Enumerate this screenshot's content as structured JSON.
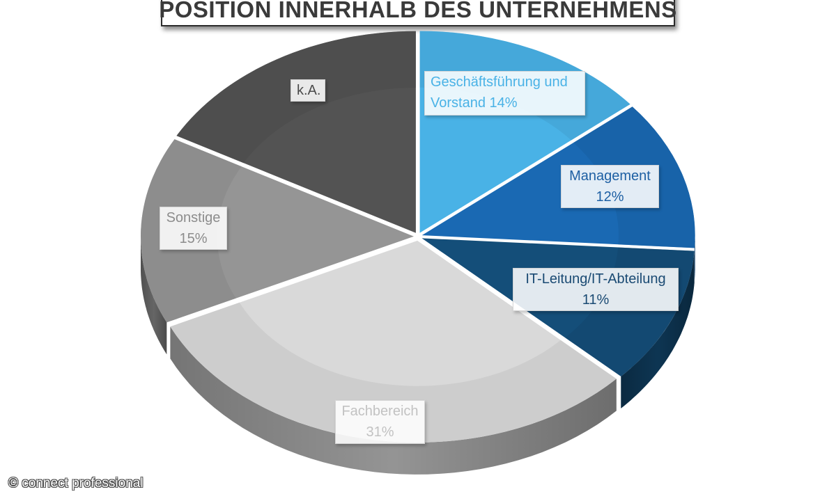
{
  "chart_data": {
    "type": "pie",
    "style": "3d-exploded",
    "title": "POSITION INNERHALB DES UNTERNEHMENS",
    "slices": [
      {
        "label": "Geschäftsführung und Vorstand",
        "value": 14,
        "value_label": "14%",
        "color": "#49b2e6"
      },
      {
        "label": "Management",
        "value": 12,
        "value_label": "12%",
        "color": "#1a69b3"
      },
      {
        "label": "IT-Leitung/IT-Abteilung",
        "value": 11,
        "value_label": "11%",
        "color": "#144e79"
      },
      {
        "label": "Fachbereich",
        "value": 31,
        "value_label": "31%",
        "color": "#d9d9d9"
      },
      {
        "label": "Sonstige",
        "value": 15,
        "value_label": "15%",
        "color": "#959595"
      },
      {
        "label": "k.A.",
        "value": 17,
        "value_label": "",
        "color": "#535353"
      }
    ]
  },
  "labels": {
    "gf_line1": "Geschäftsführung und",
    "gf_line2": "Vorstand 14%",
    "management_name": "Management",
    "management_value": "12%",
    "it_name": "IT-Leitung/IT-Abteilung",
    "it_value": "11%",
    "fach_name": "Fachbereich",
    "fach_value": "31%",
    "sonstige_name": "Sonstige",
    "sonstige_value": "15%",
    "ka_name": "k.A."
  },
  "watermark": "© connect professional"
}
